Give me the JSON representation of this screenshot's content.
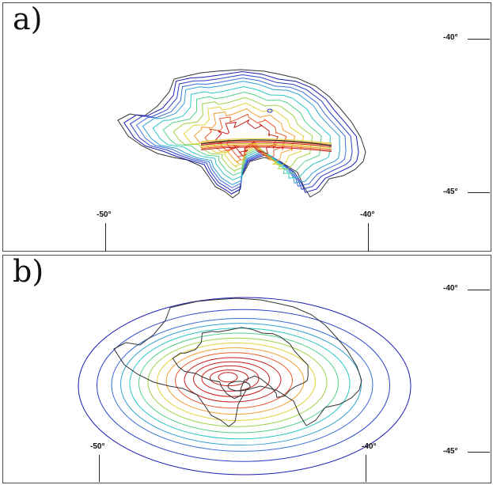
{
  "panels": [
    {
      "label": "a)",
      "lat_ticks": [
        "-40°",
        "-45°"
      ],
      "lon_ticks": [
        "-50°",
        "-40°"
      ]
    },
    {
      "label": "b)",
      "lat_ticks": [
        "-40°",
        "-45°"
      ],
      "lon_ticks": [
        "-50°",
        "-40°"
      ]
    }
  ],
  "colors": {
    "coastline": "#333333",
    "contour_palette": [
      "#1b1bb0",
      "#2a40c8",
      "#3f6fd8",
      "#2fa0d0",
      "#2cc6c6",
      "#55cf8a",
      "#9fd24a",
      "#e0d23a",
      "#f0a030",
      "#e85a2a",
      "#c81e1e"
    ]
  }
}
